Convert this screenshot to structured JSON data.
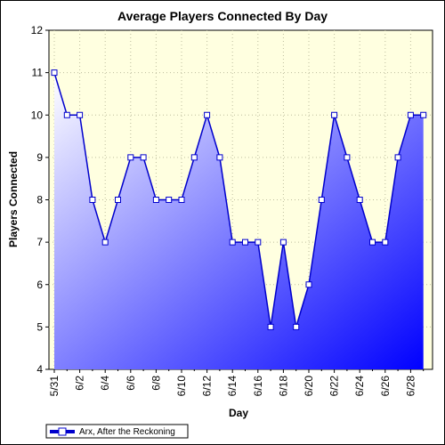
{
  "chart_data": {
    "type": "area",
    "title": "Average Players Connected By Day",
    "xlabel": "Day",
    "ylabel": "Players Connected",
    "ylim": [
      4,
      12
    ],
    "y_ticks": [
      4,
      5,
      6,
      7,
      8,
      9,
      10,
      11,
      12
    ],
    "grid": true,
    "legend_position": "bottom-left",
    "x": [
      "5/31",
      "6/1",
      "6/2",
      "6/3",
      "6/4",
      "6/5",
      "6/6",
      "6/7",
      "6/8",
      "6/9",
      "6/10",
      "6/11",
      "6/12",
      "6/13",
      "6/14",
      "6/15",
      "6/16",
      "6/17",
      "6/18",
      "6/19",
      "6/20",
      "6/21",
      "6/22",
      "6/23",
      "6/24",
      "6/25",
      "6/26",
      "6/27",
      "6/28",
      "6/29"
    ],
    "x_tick_labels": [
      "5/31",
      "6/2",
      "6/4",
      "6/6",
      "6/8",
      "6/10",
      "6/12",
      "6/14",
      "6/16",
      "6/18",
      "6/20",
      "6/22",
      "6/24",
      "6/26",
      "6/28"
    ],
    "series": [
      {
        "name": "Arx, After the Reckoning",
        "values": [
          11,
          10,
          10,
          8,
          7,
          8,
          9,
          9,
          8,
          8,
          8,
          9,
          10,
          9,
          7,
          7,
          7,
          5,
          7,
          5,
          6,
          8,
          10,
          9,
          8,
          7,
          7,
          9,
          10,
          10
        ]
      }
    ],
    "colors": {
      "plot_background": "#ffffe0",
      "line": "#0000cc",
      "fill_start": "#ffffff",
      "fill_end": "#0000ff",
      "grid": "#bdbd9e"
    }
  }
}
